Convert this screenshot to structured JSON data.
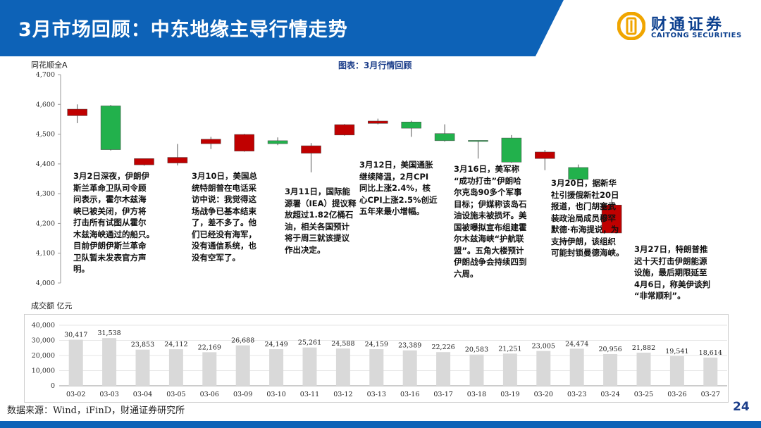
{
  "header": {
    "title": "3月市场回顾：中东地缘主导行情走势",
    "logo_cn": "财通证券",
    "logo_en": "CAITONG SECURITIES",
    "bg_color": "#0d62b7"
  },
  "chart_title": "图表：3月行情回顾",
  "page_number": "24",
  "source": "数据来源：Wind，iFinD，财通证券研究所",
  "chart_data": [
    {
      "type": "candlestick",
      "ylabel": "同花顺全A",
      "ylim": [
        4000,
        4700
      ],
      "yticks": [
        "4,000",
        "4,100",
        "4,200",
        "4,300",
        "4,400",
        "4,500",
        "4,600",
        "4,700"
      ],
      "up_color": "#c00000",
      "down_color": "#22b14c",
      "categories": [
        "03-02",
        "03-03",
        "03-04",
        "03-05",
        "03-06",
        "03-09",
        "03-10",
        "03-11",
        "03-12",
        "03-13",
        "03-16",
        "03-17",
        "03-18",
        "03-19",
        "03-20",
        "03-23",
        "03-24",
        "03-25",
        "03-26",
        "03-27"
      ],
      "candles": [
        {
          "date": "03-02",
          "open": 4562,
          "close": 4584,
          "high": 4600,
          "low": 4537
        },
        {
          "date": "03-03",
          "open": 4595,
          "close": 4448,
          "high": 4598,
          "low": 4445
        },
        {
          "date": "03-04",
          "open": 4397,
          "close": 4418,
          "high": 4418,
          "low": 4394
        },
        {
          "date": "03-05",
          "open": 4403,
          "close": 4422,
          "high": 4467,
          "low": 4395
        },
        {
          "date": "03-06",
          "open": 4468,
          "close": 4483,
          "high": 4491,
          "low": 4450
        },
        {
          "date": "03-09",
          "open": 4443,
          "close": 4499,
          "high": 4501,
          "low": 4441
        },
        {
          "date": "03-10",
          "open": 4478,
          "close": 4468,
          "high": 4489,
          "low": 4463
        },
        {
          "date": "03-11",
          "open": 4436,
          "close": 4461,
          "high": 4470,
          "low": 4372
        },
        {
          "date": "03-12",
          "open": 4497,
          "close": 4532,
          "high": 4534,
          "low": 4495
        },
        {
          "date": "03-13",
          "open": 4536,
          "close": 4544,
          "high": 4552,
          "low": 4533
        },
        {
          "date": "03-16",
          "open": 4541,
          "close": 4520,
          "high": 4545,
          "low": 4491
        },
        {
          "date": "03-17",
          "open": 4502,
          "close": 4478,
          "high": 4533,
          "low": 4475
        },
        {
          "date": "03-18",
          "open": 4479,
          "close": 4478,
          "high": 4479,
          "low": 4418
        },
        {
          "date": "03-19",
          "open": 4487,
          "close": 4406,
          "high": 4497,
          "low": 4404
        },
        {
          "date": "03-20",
          "open": 4418,
          "close": 4440,
          "high": 4447,
          "low": 4379
        },
        {
          "date": "03-23",
          "open": 4388,
          "close": 4348,
          "high": 4398,
          "low": 4336
        },
        {
          "date": "03-24",
          "open": 4168,
          "close": 4262,
          "high": 4282,
          "low": 4168
        },
        {
          "date": "03-25",
          "open": null,
          "close": null,
          "high": null,
          "low": null
        },
        {
          "date": "03-26",
          "open": null,
          "close": null,
          "high": null,
          "low": null
        },
        {
          "date": "03-27",
          "open": null,
          "close": null,
          "high": null,
          "low": null
        }
      ]
    },
    {
      "type": "bar",
      "ylabel": "成交额 亿元",
      "ylim": [
        0,
        40000
      ],
      "yticks": [
        "0",
        "10,000",
        "20,000",
        "30,000",
        "40,000"
      ],
      "bar_color": "#d9d9d9",
      "categories": [
        "03-02",
        "03-03",
        "03-04",
        "03-05",
        "03-06",
        "03-09",
        "03-10",
        "03-11",
        "03-12",
        "03-13",
        "03-16",
        "03-17",
        "03-18",
        "03-19",
        "03-20",
        "03-23",
        "03-24",
        "03-25",
        "03-26",
        "03-27"
      ],
      "values": [
        30417,
        31538,
        23853,
        24112,
        22169,
        26688,
        24149,
        25261,
        24588,
        24159,
        23389,
        22226,
        20583,
        21251,
        23005,
        24474,
        20956,
        21882,
        19541,
        18614
      ],
      "labels": [
        "30,417",
        "31,538",
        "23,853",
        "24,112",
        "22,169",
        "26,688",
        "24,149",
        "25,261",
        "24,588",
        "24,159",
        "23,389",
        "22,226",
        "20,583",
        "21,251",
        "23,005",
        "24,474",
        "20,956",
        "21,882",
        "19,541",
        "18,614"
      ]
    }
  ],
  "annotations": [
    {
      "lines": [
        "3月2日深夜，伊朗伊",
        "斯兰革命卫队司令顾",
        "问表示，霍尔木兹海",
        "峡已被关闭，伊方将",
        "打击所有试图从霍尔",
        "木兹海峡通过的船只。",
        "目前伊朗伊斯兰革命",
        "卫队暂未发表官方声",
        "明。"
      ]
    },
    {
      "lines": [
        "3月10日，美国总",
        "统特朗普在电话采",
        "访中说：我觉得这",
        "场战争已基本结束",
        "了，差不多了。他",
        "们已经没有海军，",
        "没有通信系统，也",
        "没有空军了。"
      ]
    },
    {
      "lines": [
        "3月11日，国际能",
        "源署（IEA）提议释",
        "放超过1.82亿桶石",
        "油，相关各国预计",
        "将于周三就该提议",
        "作出决定。"
      ]
    },
    {
      "lines": [
        "3月12日，美国通胀",
        "继续降温，2月CPI",
        "同比上涨2.4%，核",
        "心CPI上涨2.5%创近",
        "五年来最小增幅。"
      ]
    },
    {
      "lines": [
        "3月16日，美军称",
        "“成功打击”伊朗哈",
        "尔克岛90多个军事",
        "目标；伊媒称该岛石",
        "油设施未被损坏。美",
        "国被曝拟宣布组建霍",
        "尔木兹海峡“护航联",
        "盟”。五角大楼预计",
        "伊朗战争会持续四到",
        "六周。"
      ]
    },
    {
      "lines": [
        "3月20日，据新华",
        "社引援俄新社20日",
        "报道，也门胡塞武",
        "装政治局成员穆罕",
        "默德·布海提说，为",
        "支持伊朗，该组织",
        "可能封锁曼德海峡。"
      ]
    },
    {
      "lines": [
        "3月27日，特朗普推",
        "迟十天打击伊朗能源",
        "设施，最后期限延至",
        "4月6日，称美伊谈判",
        "“非常顺利”。"
      ]
    }
  ]
}
